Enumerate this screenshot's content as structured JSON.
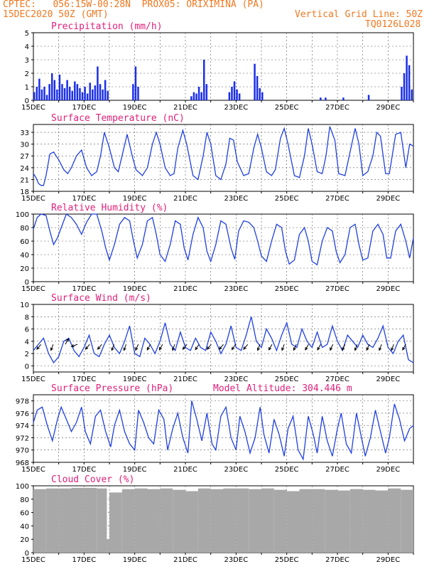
{
  "header": {
    "line1": "CPTEC:   056:15W-00:28N  PROX05: ORIXIMINA (PA)",
    "line2_left": "15DEC2020 50Z (GMT)",
    "line2_right": "Vertical Grid Line: 50Z",
    "line3_right": "TQ0126L028"
  },
  "colors": {
    "header": "#f07820",
    "title": "#e0207a",
    "line": "#2040e0",
    "bar": "#1a2ee8",
    "cloud": "#a8a8a8"
  },
  "chart_data": [
    {
      "type": "bar",
      "title": "Precipitation (mm/h)",
      "ylim": [
        0,
        5
      ],
      "yticks": [
        0,
        1,
        2,
        3,
        4,
        5
      ],
      "xticks": [
        "15DEC",
        "17DEC",
        "19DEC",
        "21DEC",
        "23DEC",
        "25DEC",
        "27DEC",
        "29DEC"
      ],
      "xlim_days": [
        15,
        30
      ],
      "series": [
        {
          "values_note_free": true,
          "x": [
            15.0,
            15.1,
            15.2,
            15.3,
            15.4,
            15.5,
            15.6,
            15.7,
            15.8,
            15.9,
            16.0,
            16.1,
            16.2,
            16.3,
            16.4,
            16.5,
            16.6,
            16.7,
            16.8,
            16.9,
            17.0,
            17.1,
            17.2,
            17.3,
            17.4,
            17.5,
            17.6,
            17.7,
            17.8,
            17.9,
            18.9,
            19.0,
            19.1,
            21.2,
            21.3,
            21.4,
            21.5,
            21.6,
            21.7,
            21.8,
            22.7,
            22.8,
            22.9,
            23.0,
            23.1,
            23.7,
            23.8,
            23.9,
            24.0,
            26.3,
            26.5,
            27.2,
            28.2,
            29.5,
            29.6,
            29.7,
            29.8,
            29.9
          ],
          "y": [
            0.6,
            1.0,
            1.6,
            0.8,
            1.0,
            0.4,
            1.2,
            2.0,
            1.5,
            0.8,
            1.9,
            1.2,
            0.9,
            1.5,
            1.0,
            0.7,
            1.4,
            1.2,
            0.9,
            0.6,
            1.0,
            0.5,
            1.3,
            0.8,
            1.1,
            2.5,
            1.2,
            0.8,
            1.5,
            0.7,
            1.2,
            2.5,
            1.0,
            0.3,
            0.6,
            0.5,
            1.0,
            0.6,
            3.0,
            1.2,
            0.6,
            1.0,
            1.4,
            0.8,
            0.5,
            2.7,
            1.8,
            0.9,
            0.6,
            0.2,
            0.2,
            0.2,
            0.4,
            1.0,
            2.0,
            3.3,
            2.6,
            0.8
          ]
        }
      ]
    },
    {
      "type": "line",
      "title": "Surface Temperature (nC)",
      "ylim": [
        18,
        35
      ],
      "yticks": [
        18,
        21,
        24,
        27,
        30,
        33
      ],
      "xticks": [
        "15DEC",
        "17DEC",
        "19DEC",
        "21DEC",
        "23DEC",
        "25DEC",
        "27DEC",
        "29DEC"
      ],
      "series": [
        {
          "x": [
            15.0,
            15.1,
            15.2,
            15.3,
            15.4,
            15.5,
            15.65,
            15.8,
            16.0,
            16.2,
            16.35,
            16.5,
            16.7,
            16.9,
            17.1,
            17.3,
            17.5,
            17.65,
            17.8,
            18.0,
            18.2,
            18.35,
            18.5,
            18.7,
            18.9,
            19.05,
            19.3,
            19.5,
            19.7,
            19.85,
            20.0,
            20.2,
            20.4,
            20.55,
            20.7,
            20.9,
            21.05,
            21.3,
            21.5,
            21.7,
            21.85,
            22.0,
            22.2,
            22.4,
            22.6,
            22.75,
            22.9,
            23.05,
            23.3,
            23.5,
            23.7,
            23.85,
            24.0,
            24.2,
            24.4,
            24.55,
            24.75,
            24.9,
            25.05,
            25.3,
            25.5,
            25.7,
            25.85,
            26.0,
            26.2,
            26.4,
            26.55,
            26.7,
            26.9,
            27.05,
            27.3,
            27.5,
            27.7,
            27.85,
            28.0,
            28.2,
            28.4,
            28.55,
            28.7,
            28.9,
            29.05,
            29.3,
            29.5,
            29.7,
            29.85,
            30.0
          ],
          "y": [
            22.5,
            21.5,
            20.0,
            19.5,
            19.5,
            22.0,
            27.5,
            28.0,
            26.0,
            23.5,
            22.5,
            24.0,
            27.0,
            28.5,
            24.0,
            22.0,
            23.0,
            27.0,
            33.0,
            29.0,
            24.0,
            23.0,
            27.0,
            32.5,
            27.0,
            23.5,
            22.0,
            24.0,
            30.0,
            33.0,
            30.0,
            24.0,
            22.0,
            22.5,
            29.0,
            33.5,
            30.0,
            22.0,
            21.0,
            27.0,
            33.0,
            30.0,
            22.0,
            21.0,
            25.0,
            31.5,
            31.0,
            25.5,
            22.0,
            22.5,
            29.0,
            32.5,
            29.0,
            23.0,
            22.0,
            23.5,
            31.5,
            34.0,
            30.0,
            22.0,
            21.5,
            27.0,
            34.0,
            30.0,
            23.0,
            22.5,
            27.0,
            34.5,
            31.0,
            22.5,
            22.0,
            28.0,
            34.0,
            30.0,
            22.0,
            23.0,
            27.0,
            33.0,
            32.0,
            22.5,
            22.5,
            32.5,
            33.0,
            24.0,
            30.0,
            29.5
          ]
        }
      ]
    },
    {
      "type": "line",
      "title": "Relative Humidity (%)",
      "ylim": [
        0,
        100
      ],
      "yticks": [
        0,
        20,
        40,
        60,
        80,
        100
      ],
      "xticks": [
        "15DEC",
        "17DEC",
        "19DEC",
        "21DEC",
        "23DEC",
        "25DEC",
        "27DEC",
        "29DEC"
      ],
      "series": [
        {
          "x": [
            15.0,
            15.15,
            15.3,
            15.5,
            15.65,
            15.8,
            15.95,
            16.1,
            16.3,
            16.5,
            16.7,
            16.9,
            17.1,
            17.3,
            17.5,
            17.7,
            17.85,
            18.0,
            18.2,
            18.4,
            18.6,
            18.8,
            18.95,
            19.1,
            19.3,
            19.5,
            19.7,
            19.85,
            20.0,
            20.2,
            20.4,
            20.6,
            20.8,
            20.95,
            21.1,
            21.3,
            21.5,
            21.7,
            21.85,
            22.0,
            22.2,
            22.4,
            22.6,
            22.8,
            22.95,
            23.1,
            23.3,
            23.5,
            23.7,
            23.85,
            24.0,
            24.2,
            24.4,
            24.6,
            24.8,
            24.95,
            25.1,
            25.3,
            25.5,
            25.7,
            25.85,
            26.0,
            26.2,
            26.4,
            26.6,
            26.8,
            26.95,
            27.1,
            27.3,
            27.5,
            27.7,
            27.85,
            28.0,
            28.2,
            28.4,
            28.6,
            28.8,
            28.95,
            29.1,
            29.3,
            29.5,
            29.7,
            29.85,
            30.0
          ],
          "y": [
            78,
            95,
            100,
            98,
            75,
            55,
            65,
            80,
            100,
            95,
            85,
            70,
            88,
            100,
            100,
            75,
            50,
            32,
            55,
            85,
            95,
            90,
            60,
            35,
            55,
            90,
            95,
            70,
            40,
            30,
            55,
            90,
            85,
            50,
            32,
            70,
            95,
            80,
            45,
            30,
            55,
            90,
            85,
            50,
            33,
            75,
            90,
            88,
            80,
            60,
            38,
            30,
            60,
            85,
            80,
            45,
            26,
            32,
            70,
            80,
            60,
            30,
            25,
            60,
            80,
            75,
            45,
            28,
            40,
            80,
            85,
            55,
            32,
            35,
            75,
            85,
            70,
            35,
            35,
            75,
            85,
            60,
            35,
            65
          ]
        }
      ]
    },
    {
      "type": "line",
      "title": "Surface Wind (m/s)",
      "ylim": [
        -1,
        10
      ],
      "yticks": [
        0,
        2,
        4,
        6,
        8,
        10
      ],
      "xticks": [
        "15DEC",
        "17DEC",
        "19DEC",
        "21DEC",
        "23DEC",
        "25DEC",
        "27DEC",
        "29DEC"
      ],
      "series": [
        {
          "x": [
            15.0,
            15.2,
            15.4,
            15.6,
            15.8,
            16.0,
            16.2,
            16.4,
            16.6,
            16.8,
            17.0,
            17.2,
            17.4,
            17.6,
            17.8,
            18.0,
            18.2,
            18.4,
            18.6,
            18.8,
            19.0,
            19.2,
            19.4,
            19.6,
            19.8,
            20.0,
            20.2,
            20.4,
            20.6,
            20.8,
            21.0,
            21.2,
            21.4,
            21.6,
            21.8,
            22.0,
            22.2,
            22.4,
            22.6,
            22.8,
            23.0,
            23.2,
            23.4,
            23.6,
            23.8,
            24.0,
            24.2,
            24.4,
            24.6,
            24.8,
            25.0,
            25.2,
            25.4,
            25.6,
            25.8,
            26.0,
            26.2,
            26.4,
            26.6,
            26.8,
            27.0,
            27.2,
            27.4,
            27.6,
            27.8,
            28.0,
            28.2,
            28.4,
            28.6,
            28.8,
            29.0,
            29.2,
            29.4,
            29.6,
            29.8,
            30.0
          ],
          "y": [
            2.5,
            3.5,
            4.5,
            2.0,
            0.5,
            1.5,
            4.0,
            4.5,
            2.5,
            1.5,
            3.0,
            5.0,
            2.0,
            1.5,
            3.5,
            5.0,
            3.0,
            2.0,
            4.0,
            6.5,
            2.0,
            1.5,
            4.5,
            3.5,
            2.0,
            4.0,
            7.0,
            3.5,
            2.5,
            5.5,
            3.0,
            2.5,
            4.5,
            3.0,
            2.5,
            5.5,
            4.0,
            2.0,
            3.5,
            6.5,
            3.0,
            2.5,
            5.0,
            8.0,
            4.0,
            3.0,
            6.0,
            4.5,
            2.5,
            5.0,
            7.0,
            3.5,
            3.0,
            6.0,
            4.0,
            3.0,
            5.5,
            3.0,
            3.5,
            6.5,
            4.0,
            2.5,
            5.0,
            4.0,
            3.0,
            5.0,
            3.5,
            3.0,
            4.5,
            6.5,
            3.0,
            2.0,
            4.0,
            5.0,
            1.0,
            0.5
          ]
        }
      ],
      "vectors_dir_deg": [
        230,
        250,
        60,
        200,
        230,
        230,
        250,
        250,
        245,
        240,
        240,
        250,
        230,
        235,
        230,
        230,
        235,
        230,
        250,
        240,
        250,
        245,
        240,
        240,
        245,
        245,
        250,
        245,
        250,
        250,
        240
      ]
    },
    {
      "type": "line",
      "title": "Surface Pressure (hPa)",
      "annotation": "Model Altitude: 304.446  m",
      "ylim": [
        968,
        979
      ],
      "yticks": [
        968,
        970,
        972,
        974,
        976,
        978
      ],
      "xticks": [
        "15DEC",
        "17DEC",
        "19DEC",
        "21DEC",
        "23DEC",
        "25DEC",
        "27DEC",
        "29DEC"
      ],
      "series": [
        {
          "x": [
            15.0,
            15.15,
            15.35,
            15.55,
            15.75,
            15.95,
            16.1,
            16.3,
            16.5,
            16.7,
            16.9,
            17.05,
            17.25,
            17.45,
            17.65,
            17.85,
            18.05,
            18.2,
            18.4,
            18.6,
            18.8,
            19.0,
            19.15,
            19.35,
            19.55,
            19.75,
            19.95,
            20.15,
            20.3,
            20.5,
            20.7,
            20.9,
            21.1,
            21.25,
            21.45,
            21.65,
            21.85,
            22.05,
            22.2,
            22.4,
            22.6,
            22.8,
            23.0,
            23.15,
            23.35,
            23.55,
            23.75,
            23.95,
            24.1,
            24.3,
            24.5,
            24.7,
            24.9,
            25.05,
            25.25,
            25.45,
            25.65,
            25.85,
            26.05,
            26.2,
            26.4,
            26.6,
            26.8,
            27.0,
            27.15,
            27.35,
            27.55,
            27.75,
            27.95,
            28.1,
            28.3,
            28.5,
            28.7,
            28.9,
            29.05,
            29.25,
            29.45,
            29.65,
            29.85,
            30.0
          ],
          "y": [
            974.5,
            976.5,
            977.0,
            974.0,
            971.5,
            975.0,
            977.0,
            975.0,
            973.0,
            974.5,
            977.0,
            973.0,
            971.0,
            975.5,
            976.5,
            973.0,
            970.5,
            974.0,
            976.5,
            973.0,
            971.0,
            970.0,
            976.5,
            974.5,
            972.0,
            971.0,
            976.5,
            975.0,
            970.0,
            973.5,
            976.0,
            972.0,
            969.5,
            978.0,
            975.0,
            971.5,
            976.0,
            971.0,
            970.0,
            975.5,
            977.0,
            972.0,
            970.0,
            975.5,
            973.0,
            969.5,
            972.0,
            977.0,
            972.5,
            969.5,
            975.0,
            972.5,
            969.0,
            973.5,
            975.5,
            970.0,
            968.5,
            975.5,
            972.5,
            969.5,
            975.5,
            971.5,
            969.0,
            973.5,
            976.0,
            971.0,
            969.5,
            976.0,
            972.0,
            969.0,
            972.0,
            976.5,
            973.0,
            969.5,
            972.0,
            977.5,
            975.0,
            971.5,
            973.5,
            974.0
          ]
        }
      ]
    },
    {
      "type": "bar",
      "title": "Cloud Cover (%)",
      "ylim": [
        0,
        100
      ],
      "yticks": [
        0,
        20,
        40,
        60,
        80,
        100
      ],
      "xticks": [
        "15DEC",
        "17DEC",
        "19DEC",
        "21DEC",
        "23DEC",
        "25DEC",
        "27DEC",
        "29DEC"
      ],
      "series": [
        {
          "x": [
            15.0,
            15.5,
            16.0,
            16.5,
            17.0,
            17.5,
            17.9,
            18.0,
            18.5,
            19.0,
            19.5,
            20.0,
            20.5,
            21.0,
            21.5,
            22.0,
            22.5,
            23.0,
            23.5,
            24.0,
            24.5,
            25.0,
            25.5,
            26.0,
            26.5,
            27.0,
            27.5,
            28.0,
            28.5,
            29.0,
            29.5,
            30.0
          ],
          "y": [
            95,
            96,
            96,
            97,
            97,
            96,
            20,
            90,
            95,
            96,
            95,
            96,
            94,
            92,
            96,
            95,
            96,
            96,
            95,
            96,
            94,
            92,
            95,
            95,
            94,
            93,
            95,
            94,
            93,
            96,
            94,
            95
          ]
        }
      ]
    }
  ]
}
